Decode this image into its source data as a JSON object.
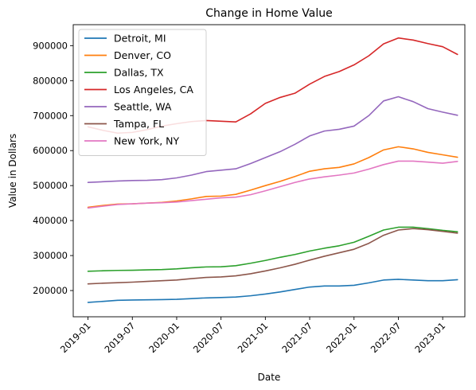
{
  "chart_data": {
    "type": "line",
    "title": "Change in Home Value",
    "xlabel": "Date",
    "ylabel": "Value in Dollars",
    "x": [
      "2019-01",
      "2019-03",
      "2019-05",
      "2019-07",
      "2019-09",
      "2019-11",
      "2020-01",
      "2020-03",
      "2020-05",
      "2020-07",
      "2020-09",
      "2020-11",
      "2021-01",
      "2021-03",
      "2021-05",
      "2021-07",
      "2021-09",
      "2021-11",
      "2022-01",
      "2022-03",
      "2022-05",
      "2022-07",
      "2022-09",
      "2022-11",
      "2023-01",
      "2023-03"
    ],
    "xticks": [
      "2019-01",
      "2019-07",
      "2020-01",
      "2020-07",
      "2021-01",
      "2021-07",
      "2022-01",
      "2022-07",
      "2023-01"
    ],
    "yticks": [
      "200000",
      "300000",
      "400000",
      "500000",
      "600000",
      "700000",
      "800000",
      "900000"
    ],
    "ylim": [
      125000,
      960000
    ],
    "xlim": [
      "2018-11",
      "2023-04"
    ],
    "legend_location": "upper-left",
    "series": [
      {
        "name": "Detroit, MI",
        "color": "#1f77b4",
        "values": [
          166000,
          169000,
          172000,
          173000,
          173500,
          174000,
          175000,
          177000,
          179000,
          180000,
          181500,
          185000,
          190000,
          196000,
          203000,
          210000,
          213000,
          213000,
          215000,
          222000,
          230000,
          232000,
          230000,
          228000,
          228000,
          231000
        ]
      },
      {
        "name": "Denver, CO",
        "color": "#ff7f0e",
        "values": [
          438000,
          443000,
          447000,
          448000,
          450000,
          452000,
          456000,
          462000,
          469000,
          470000,
          475000,
          487000,
          500000,
          512000,
          526000,
          541000,
          548000,
          552000,
          562000,
          580000,
          602000,
          611000,
          605000,
          595000,
          588000,
          581000
        ]
      },
      {
        "name": "Dallas, TX",
        "color": "#2ca02c",
        "values": [
          255000,
          256500,
          257500,
          258000,
          259000,
          260000,
          262000,
          265000,
          267500,
          268000,
          271000,
          278000,
          286000,
          295000,
          303000,
          313000,
          321000,
          328000,
          338000,
          355000,
          373000,
          381000,
          381000,
          377000,
          372000,
          368000
        ]
      },
      {
        "name": "Los Angeles, CA",
        "color": "#d62728",
        "values": [
          668000,
          658000,
          650000,
          652000,
          660000,
          670000,
          677000,
          683000,
          686000,
          684000,
          682000,
          705000,
          735000,
          752000,
          764000,
          790000,
          812000,
          826000,
          845000,
          871000,
          905000,
          922000,
          916000,
          906000,
          897000,
          875000
        ]
      },
      {
        "name": "Seattle, WA",
        "color": "#9467bd",
        "values": [
          509000,
          511000,
          513000,
          514500,
          515000,
          517000,
          522000,
          530000,
          540000,
          544000,
          548000,
          563000,
          580000,
          597000,
          618000,
          642000,
          656000,
          661000,
          670000,
          700000,
          742000,
          754000,
          740000,
          720000,
          710000,
          701000
        ]
      },
      {
        "name": "Tampa, FL",
        "color": "#8c564b",
        "values": [
          219000,
          221000,
          222500,
          224000,
          226000,
          228000,
          230000,
          234000,
          237500,
          239000,
          242000,
          248000,
          256000,
          265000,
          275000,
          287000,
          298000,
          308000,
          318000,
          335000,
          358000,
          373000,
          377000,
          374000,
          369000,
          364000
        ]
      },
      {
        "name": "New York, NY",
        "color": "#e377c2",
        "values": [
          436000,
          441000,
          446000,
          448000,
          450000,
          451000,
          453000,
          457000,
          461000,
          465000,
          467000,
          474000,
          485000,
          497000,
          509000,
          519000,
          525000,
          530000,
          536000,
          547000,
          560000,
          570000,
          570000,
          567000,
          564000,
          569000
        ]
      }
    ]
  }
}
